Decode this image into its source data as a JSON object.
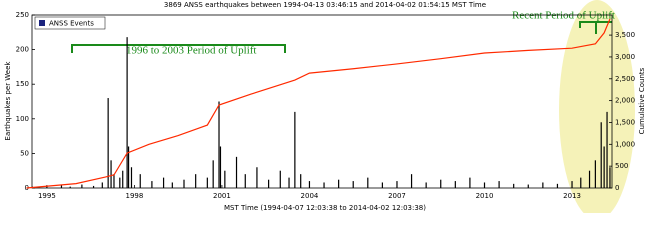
{
  "chart_data": {
    "type": "bar",
    "title": "3869 ANSS earthquakes between 1994-04-13 03:46:15 and 2014-04-02 01:54:15 MST Time",
    "x_label": "MST Time (1994-04-07 12:03:38 to 2014-04-02 12:03:38)",
    "y_label": "Earthquakes per Week",
    "y2_label": "Cumulative Counts",
    "legend": "upper left",
    "annotations": [
      "1996 to 2003 Period of Uplift",
      "Recent Period of Uplift"
    ],
    "xlim": [
      1994.49,
      2014.37
    ],
    "xticks": [
      1995,
      1998,
      2001,
      2004,
      2007,
      2010,
      2013
    ],
    "ylim": [
      0,
      250
    ],
    "yticks": [
      0,
      50,
      100,
      150,
      200,
      250
    ],
    "y2lim": [
      0,
      3960
    ],
    "y2ticks": [
      0,
      {
        "value": 500,
        "label": "500"
      },
      {
        "value": 1000,
        "label": "1,000"
      },
      {
        "value": 1500,
        "label": "1,500"
      },
      {
        "value": 2000,
        "label": "2,000"
      },
      {
        "value": 2500,
        "label": "2,500"
      },
      {
        "value": 3000,
        "label": "3,000"
      },
      {
        "value": 3500,
        "label": "3,500"
      }
    ],
    "series": [
      {
        "name": "ANSS Events",
        "type": "bar",
        "color": "#000000",
        "x": [
          1994.5,
          1995.0,
          1995.5,
          1995.8,
          1996.2,
          1996.6,
          1996.9,
          1997.1,
          1997.2,
          1997.3,
          1997.5,
          1997.6,
          1997.75,
          1997.8,
          1997.9,
          1998.2,
          1998.6,
          1999.0,
          1999.3,
          1999.7,
          2000.1,
          2000.5,
          2000.7,
          2000.9,
          2000.95,
          2001.1,
          2001.5,
          2001.8,
          2002.2,
          2002.6,
          2003.0,
          2003.3,
          2003.5,
          2003.7,
          2004.0,
          2004.5,
          2005.0,
          2005.5,
          2006.0,
          2006.5,
          2007.0,
          2007.5,
          2008.0,
          2008.5,
          2009.0,
          2009.5,
          2010.0,
          2010.5,
          2011.0,
          2011.5,
          2012.0,
          2012.5,
          2013.0,
          2013.3,
          2013.6,
          2013.8,
          2014.0,
          2014.1,
          2014.2,
          2014.3
        ],
        "values": [
          2,
          3,
          4,
          2,
          5,
          3,
          8,
          130,
          40,
          20,
          15,
          25,
          218,
          60,
          30,
          20,
          10,
          15,
          8,
          12,
          20,
          15,
          40,
          125,
          60,
          25,
          45,
          20,
          30,
          12,
          25,
          15,
          110,
          20,
          10,
          8,
          12,
          10,
          15,
          8,
          10,
          20,
          8,
          12,
          10,
          15,
          8,
          10,
          6,
          5,
          8,
          6,
          10,
          15,
          25,
          40,
          95,
          60,
          110,
          30
        ]
      },
      {
        "type": "line",
        "axis": "y2",
        "color": "#ff2a00",
        "x": [
          1994.3,
          1996.0,
          1997.0,
          1997.3,
          1997.75,
          1998.5,
          1999.5,
          2000.5,
          2000.9,
          2002.0,
          2003.5,
          2004.0,
          2005.5,
          2007.0,
          2008.5,
          2010.0,
          2011.5,
          2013.0,
          2013.8,
          2014.1,
          2014.3
        ],
        "values": [
          0,
          100,
          250,
          300,
          800,
          1000,
          1200,
          1440,
          1900,
          2150,
          2470,
          2630,
          2730,
          2840,
          2960,
          3090,
          3150,
          3200,
          3300,
          3550,
          3869
        ]
      }
    ]
  }
}
